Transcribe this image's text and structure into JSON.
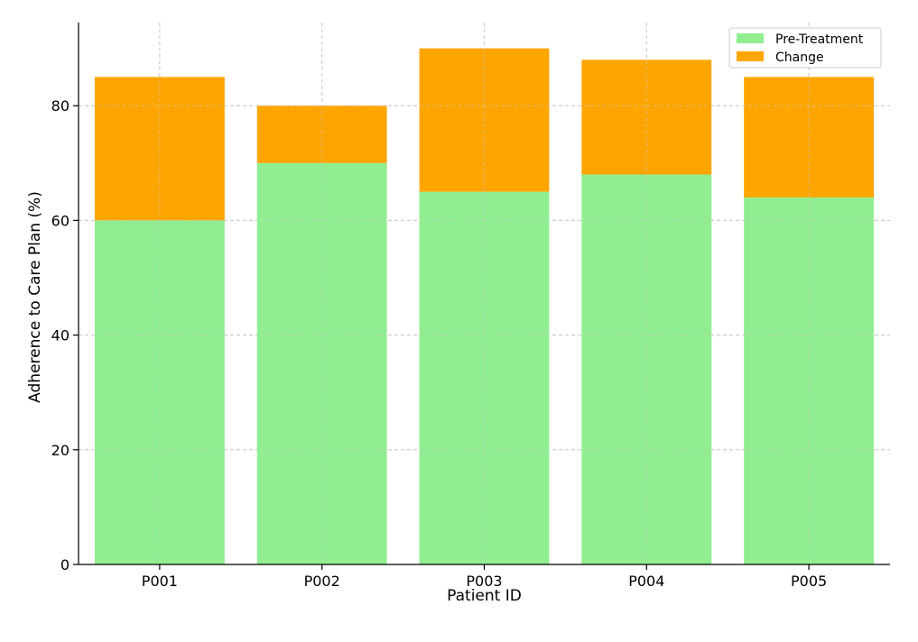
{
  "chart_data": {
    "type": "bar",
    "stacked": true,
    "categories": [
      "P001",
      "P002",
      "P003",
      "P004",
      "P005"
    ],
    "series": [
      {
        "name": "Pre-Treatment",
        "values": [
          60,
          70,
          65,
          68,
          64
        ],
        "color": "#90ee90"
      },
      {
        "name": "Change",
        "values": [
          25,
          10,
          25,
          20,
          21
        ],
        "color": "#ffa500"
      }
    ],
    "title": "",
    "xlabel": "Patient ID",
    "ylabel": "Adherence to Care Plan (%)",
    "ylim": [
      0,
      94.5
    ],
    "yticks": [
      0,
      20,
      40,
      60,
      80
    ],
    "grid": true,
    "legend_position": "top-right"
  }
}
